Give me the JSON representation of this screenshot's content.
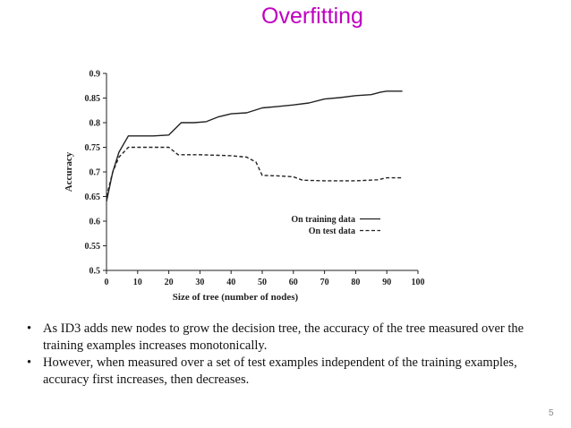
{
  "slide": {
    "title": "Overfitting",
    "page_number": "5",
    "bullets": [
      {
        "marker": "•",
        "text": "As ID3 adds new nodes to grow the decision tree, the accuracy of the tree measured  over the training examples increases monotonically."
      },
      {
        "marker": "•",
        "text": "However, when measured over a set of test examples independent of the training  examples, accuracy first increases, then decreases."
      }
    ]
  },
  "chart_data": {
    "type": "line",
    "title": "",
    "xlabel": "Size of tree (number of nodes)",
    "ylabel": "Accuracy",
    "xlim": [
      0,
      100
    ],
    "ylim": [
      0.5,
      0.9
    ],
    "xticks": [
      "0",
      "10",
      "20",
      "30",
      "40",
      "50",
      "60",
      "70",
      "80",
      "90",
      "100"
    ],
    "yticks": [
      "0.5",
      "0.55",
      "0.6",
      "0.65",
      "0.7",
      "0.75",
      "0.8",
      "0.85",
      "0.9"
    ],
    "grid": false,
    "legend_position": "lower-right",
    "series": [
      {
        "name": "On training data",
        "style": "solid",
        "color": "#222222",
        "points": [
          [
            0,
            0.64
          ],
          [
            2,
            0.7
          ],
          [
            4,
            0.74
          ],
          [
            7,
            0.773
          ],
          [
            10,
            0.773
          ],
          [
            15,
            0.773
          ],
          [
            20,
            0.775
          ],
          [
            24,
            0.8
          ],
          [
            28,
            0.8
          ],
          [
            32,
            0.802
          ],
          [
            36,
            0.812
          ],
          [
            40,
            0.818
          ],
          [
            45,
            0.82
          ],
          [
            50,
            0.83
          ],
          [
            55,
            0.833
          ],
          [
            60,
            0.836
          ],
          [
            65,
            0.84
          ],
          [
            70,
            0.848
          ],
          [
            75,
            0.851
          ],
          [
            80,
            0.855
          ],
          [
            85,
            0.857
          ],
          [
            88,
            0.862
          ],
          [
            90,
            0.864
          ],
          [
            95,
            0.864
          ]
        ]
      },
      {
        "name": "On test data",
        "style": "dashed",
        "color": "#222222",
        "points": [
          [
            0,
            0.65
          ],
          [
            2,
            0.7
          ],
          [
            4,
            0.73
          ],
          [
            7,
            0.75
          ],
          [
            10,
            0.75
          ],
          [
            15,
            0.75
          ],
          [
            20,
            0.75
          ],
          [
            23,
            0.735
          ],
          [
            30,
            0.735
          ],
          [
            40,
            0.733
          ],
          [
            45,
            0.73
          ],
          [
            48,
            0.72
          ],
          [
            50,
            0.693
          ],
          [
            55,
            0.692
          ],
          [
            60,
            0.69
          ],
          [
            63,
            0.683
          ],
          [
            70,
            0.682
          ],
          [
            80,
            0.682
          ],
          [
            84,
            0.683
          ],
          [
            87,
            0.684
          ],
          [
            90,
            0.688
          ],
          [
            95,
            0.688
          ]
        ]
      }
    ]
  }
}
